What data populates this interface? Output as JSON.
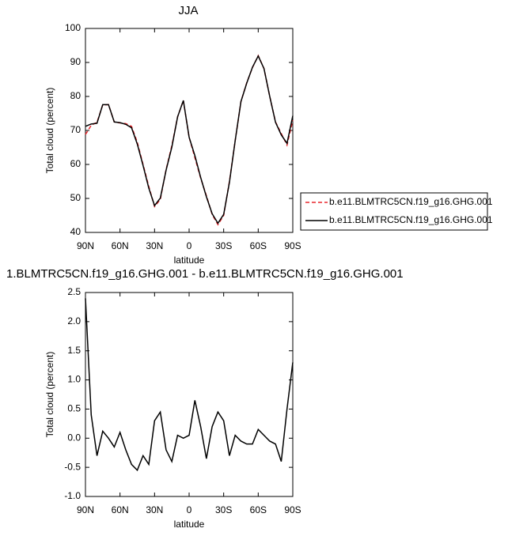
{
  "chart_data": [
    {
      "type": "line",
      "title": "JJA",
      "xlabel": "latitude",
      "ylabel": "Total cloud (percent)",
      "x": [
        90,
        85,
        80,
        75,
        70,
        65,
        60,
        55,
        50,
        45,
        40,
        35,
        30,
        25,
        20,
        15,
        10,
        5,
        0,
        -5,
        -10,
        -15,
        -20,
        -25,
        -30,
        -35,
        -40,
        -45,
        -50,
        -55,
        -60,
        -65,
        -70,
        -75,
        -80,
        -85,
        -90
      ],
      "xlim": [
        90,
        -90
      ],
      "xticks": [
        {
          "value": 90,
          "label": "90N"
        },
        {
          "value": 60,
          "label": "60N"
        },
        {
          "value": 30,
          "label": "30N"
        },
        0,
        {
          "value": -30,
          "label": "30S"
        },
        {
          "value": -60,
          "label": "60S"
        },
        {
          "value": -90,
          "label": "90S"
        }
      ],
      "ylim": [
        40,
        100
      ],
      "yticks": [
        40,
        50,
        60,
        70,
        80,
        90,
        100
      ],
      "legend": "right",
      "series": [
        {
          "name": "b.e11.BLMTRC5CN.f19_g16.GHG.001",
          "color": "#e8262b",
          "dash": true,
          "values": [
            68.8,
            71.5,
            72.4,
            77.5,
            77.6,
            72.5,
            72.2,
            72.0,
            71.2,
            66.5,
            60.0,
            53.5,
            47.6,
            49.7,
            58.5,
            65.5,
            74.0,
            78.8,
            68.0,
            62.0,
            56.0,
            50.8,
            45.3,
            42.3,
            45.0,
            55.0,
            67.0,
            78.5,
            84.0,
            88.5,
            92.0,
            88.2,
            80.0,
            72.5,
            69.1,
            65.7,
            73.0
          ]
        },
        {
          "name": "b.e11.BLMTRC5CN.f19_g16.GHG.001",
          "color": "#000000",
          "dash": false,
          "values": [
            71.2,
            71.9,
            72.1,
            77.6,
            77.6,
            72.5,
            72.3,
            71.8,
            70.8,
            66.0,
            59.7,
            53.0,
            47.9,
            50.1,
            58.3,
            65.1,
            74.0,
            78.8,
            68.0,
            62.6,
            56.2,
            50.5,
            45.5,
            42.7,
            45.3,
            54.7,
            67.0,
            78.5,
            83.9,
            88.6,
            91.9,
            88.2,
            80.0,
            72.4,
            68.7,
            66.2,
            74.3
          ]
        }
      ]
    },
    {
      "type": "line",
      "title": "1.BLMTRC5CN.f19_g16.GHG.001 - b.e11.BLMTRC5CN.f19_g16.GHG.001",
      "xlabel": "latitude",
      "ylabel": "Total cloud (percent)",
      "x": [
        90,
        85,
        80,
        75,
        70,
        65,
        60,
        55,
        50,
        45,
        40,
        35,
        30,
        25,
        20,
        15,
        10,
        5,
        0,
        -5,
        -10,
        -15,
        -20,
        -25,
        -30,
        -35,
        -40,
        -45,
        -50,
        -55,
        -60,
        -65,
        -70,
        -75,
        -80,
        -85,
        -90
      ],
      "xlim": [
        90,
        -90
      ],
      "xticks": [
        {
          "value": 90,
          "label": "90N"
        },
        {
          "value": 60,
          "label": "60N"
        },
        {
          "value": 30,
          "label": "30N"
        },
        0,
        {
          "value": -30,
          "label": "30S"
        },
        {
          "value": -60,
          "label": "60S"
        },
        {
          "value": -90,
          "label": "90S"
        }
      ],
      "ylim": [
        -1,
        2.5
      ],
      "yticks": [
        {
          "value": -1,
          "label": "-1.0"
        },
        {
          "value": -0.5,
          "label": "-0.5"
        },
        {
          "value": 0,
          "label": "0.0"
        },
        {
          "value": 0.5,
          "label": "0.5"
        },
        {
          "value": 1,
          "label": "1.0"
        },
        {
          "value": 1.5,
          "label": "1.5"
        },
        {
          "value": 2,
          "label": "2.0"
        },
        {
          "value": 2.5,
          "label": "2.5"
        }
      ],
      "series": [
        {
          "color": "#000000",
          "values": [
            2.4,
            0.4,
            -0.3,
            0.12,
            0.0,
            -0.15,
            0.1,
            -0.2,
            -0.45,
            -0.55,
            -0.3,
            -0.45,
            0.3,
            0.45,
            -0.2,
            -0.4,
            0.05,
            0.0,
            0.05,
            0.65,
            0.2,
            -0.35,
            0.2,
            0.45,
            0.3,
            -0.3,
            0.05,
            -0.05,
            -0.1,
            -0.1,
            0.15,
            0.05,
            -0.05,
            -0.1,
            -0.4,
            0.5,
            1.3
          ]
        }
      ]
    }
  ]
}
